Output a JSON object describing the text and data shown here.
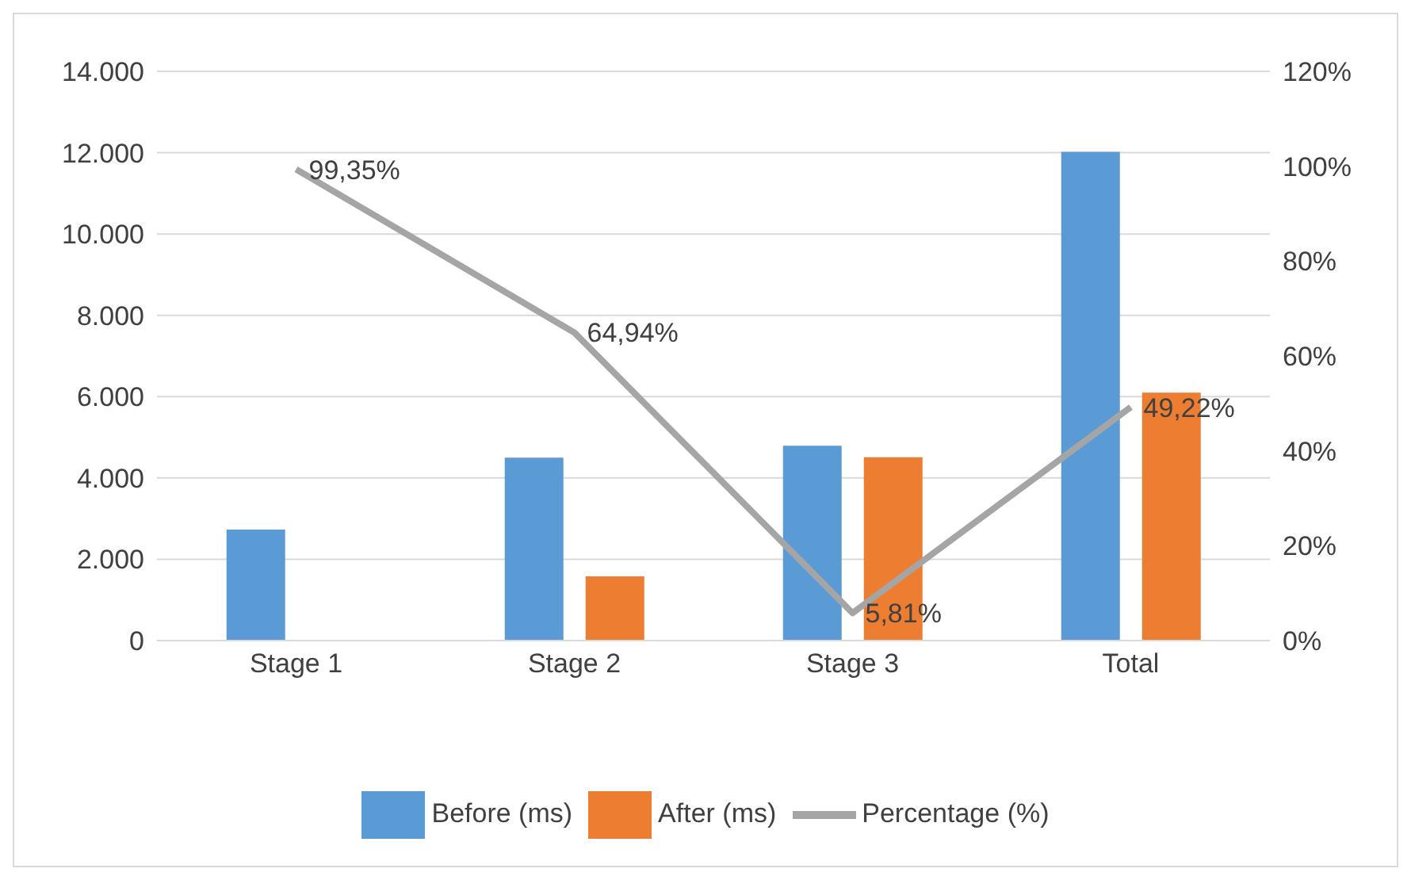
{
  "chart_data": {
    "type": "bar",
    "categories": [
      "Stage 1",
      "Stage 2",
      "Stage 3",
      "Total"
    ],
    "series": [
      {
        "name": "Before (ms)",
        "color": "#5b9bd5",
        "values": [
          2730,
          4500,
          4790,
          12020
        ]
      },
      {
        "name": "After (ms)",
        "color": "#ed7d31",
        "values": [
          20,
          1580,
          4510,
          6100
        ]
      },
      {
        "name": "Percentage (%)",
        "type": "line",
        "axis": "y2",
        "color": "#a5a5a5",
        "values": [
          99.35,
          64.94,
          5.81,
          49.22
        ],
        "value_labels": [
          "99,35%",
          "64,94%",
          "5,81%",
          "49,22%"
        ]
      }
    ],
    "ylim": [
      0,
      14000
    ],
    "yticks": [
      {
        "value": 0,
        "label": "0"
      },
      {
        "value": 2000,
        "label": "2.000"
      },
      {
        "value": 4000,
        "label": "4.000"
      },
      {
        "value": 6000,
        "label": "6.000"
      },
      {
        "value": 8000,
        "label": "8.000"
      },
      {
        "value": 10000,
        "label": "10.000"
      },
      {
        "value": 12000,
        "label": "12.000"
      },
      {
        "value": 14000,
        "label": "14.000"
      }
    ],
    "y2lim": [
      0,
      120
    ],
    "y2ticks": [
      {
        "value": 0,
        "label": "0%"
      },
      {
        "value": 20,
        "label": "20%"
      },
      {
        "value": 40,
        "label": "40%"
      },
      {
        "value": 60,
        "label": "60%"
      },
      {
        "value": 80,
        "label": "80%"
      },
      {
        "value": 100,
        "label": "100%"
      },
      {
        "value": 120,
        "label": "120%"
      }
    ],
    "grid": "y",
    "legend": "bottom",
    "marker": "none",
    "line_style": "solid"
  }
}
